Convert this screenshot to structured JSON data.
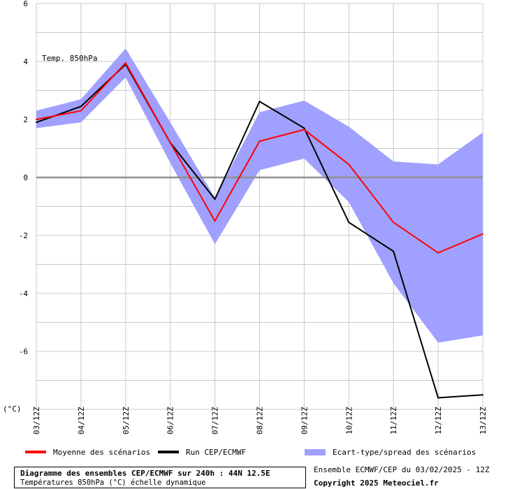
{
  "chart_data": {
    "type": "line",
    "title": "Diagramme des ensembles CEP/ECMWF sur 240h : 44N 12.5E",
    "subtitle": "Températures 850hPa (°C) échelle dynamique",
    "annotation": "Temp. 850hPa",
    "ylabel": "(°C)",
    "xlabel": "",
    "ylim": [
      -8,
      6
    ],
    "yticks": [
      -8,
      -6,
      -4,
      -2,
      0,
      2,
      4,
      6
    ],
    "ytick_labels": [
      "",
      "-6",
      "-4",
      "-2",
      "0",
      "2",
      "4",
      "6"
    ],
    "grid": true,
    "categories": [
      "03/12Z",
      "04/12Z",
      "05/12Z",
      "06/12Z",
      "07/12Z",
      "08/12Z",
      "09/12Z",
      "10/12Z",
      "11/12Z",
      "12/12Z",
      "13/12Z"
    ],
    "series": [
      {
        "name": "Moyenne des scénarios",
        "color": "#ff0000",
        "values": [
          2.0,
          2.3,
          3.95,
          1.2,
          -1.5,
          1.25,
          1.65,
          0.45,
          -1.55,
          -2.6,
          -1.95
        ]
      },
      {
        "name": "Run CEP/ECMWF",
        "color": "#000000",
        "values": [
          1.9,
          2.45,
          3.9,
          1.2,
          -0.75,
          2.62,
          1.7,
          -1.55,
          -2.55,
          -7.6,
          -7.5
        ]
      }
    ],
    "band": {
      "name": "Ecart-type/spread des scénarios",
      "color": "#a0a0ff",
      "upper": [
        2.3,
        2.7,
        4.45,
        1.9,
        -0.7,
        2.25,
        2.65,
        1.75,
        0.55,
        0.45,
        1.55
      ],
      "lower": [
        1.7,
        1.9,
        3.45,
        0.5,
        -2.3,
        0.25,
        0.65,
        -0.85,
        -3.65,
        -5.7,
        -5.45
      ]
    }
  },
  "legend": {
    "mean_label": "Moyenne des scénarios",
    "run_label": "Run CEP/ECMWF",
    "spread_label": "Ecart-type/spread des scénarios"
  },
  "footer": {
    "title": "Diagramme des ensembles CEP/ECMWF sur 240h : 44N 12.5E",
    "subtitle": "Températures 850hPa (°C) échelle dynamique",
    "ensemble_info": "Ensemble ECMWF/CEP du 03/02/2025 - 12Z",
    "copyright": "Copyright 2025 Meteociel.fr"
  }
}
